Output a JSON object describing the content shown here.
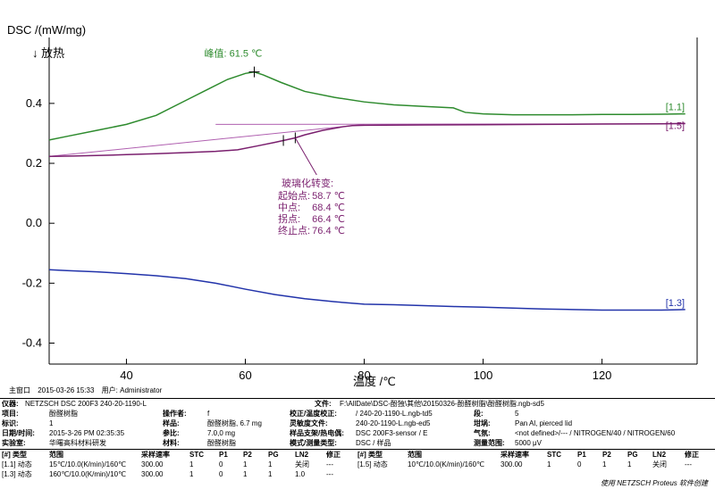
{
  "chart_data": {
    "type": "line",
    "ylabel": "DSC /(mW/mg)",
    "exo_label": "↓ 放热",
    "xlabel": "温度 /℃",
    "xlim": [
      27,
      136
    ],
    "ylim": [
      -0.47,
      0.62
    ],
    "xticks": [
      40,
      60,
      80,
      100,
      120
    ],
    "yticks": [
      -0.4,
      -0.2,
      0.0,
      0.2,
      0.4
    ],
    "tick_labels": {
      "x": [
        "40",
        "60",
        "80",
        "100",
        "120"
      ],
      "y": [
        "-0.4",
        "-0.2",
        "0.0",
        "0.2",
        "0.4"
      ]
    },
    "series": [
      {
        "name": "[1.1]",
        "color": "#2e8b2e",
        "x": [
          27,
          30,
          35,
          40,
          45,
          50,
          54,
          57,
          60,
          61.5,
          63,
          66,
          70,
          75,
          80,
          85,
          90,
          95,
          97,
          100,
          105,
          110,
          115,
          120,
          125,
          130,
          134
        ],
        "y": [
          0.278,
          0.29,
          0.31,
          0.33,
          0.36,
          0.41,
          0.45,
          0.48,
          0.5,
          0.505,
          0.495,
          0.47,
          0.44,
          0.42,
          0.405,
          0.395,
          0.39,
          0.385,
          0.37,
          0.365,
          0.362,
          0.362,
          0.362,
          0.363,
          0.363,
          0.364,
          0.365
        ]
      },
      {
        "name": "[1.5]",
        "color": "#7a1f6e",
        "x": [
          27,
          30,
          35,
          40,
          45,
          50,
          55,
          58.7,
          62,
          65,
          68.4,
          70,
          73,
          76.4,
          78,
          80,
          90,
          100,
          110,
          120,
          130,
          134
        ],
        "y": [
          0.223,
          0.224,
          0.226,
          0.229,
          0.232,
          0.236,
          0.24,
          0.245,
          0.258,
          0.27,
          0.285,
          0.295,
          0.31,
          0.322,
          0.326,
          0.327,
          0.328,
          0.329,
          0.33,
          0.331,
          0.332,
          0.333
        ]
      },
      {
        "name": "[1.3]",
        "color": "#2233aa",
        "x": [
          27,
          30,
          35,
          40,
          45,
          50,
          55,
          60,
          65,
          70,
          75,
          80,
          85,
          90,
          95,
          100,
          105,
          110,
          115,
          120,
          125,
          130,
          134
        ],
        "y": [
          -0.155,
          -0.158,
          -0.162,
          -0.168,
          -0.175,
          -0.185,
          -0.2,
          -0.22,
          -0.238,
          -0.252,
          -0.262,
          -0.27,
          -0.272,
          -0.275,
          -0.278,
          -0.28,
          -0.283,
          -0.286,
          -0.288,
          -0.29,
          -0.29,
          -0.29,
          -0.288
        ]
      }
    ],
    "tangent_lines": [
      {
        "color": "#b060b0",
        "x": [
          27,
          80
        ],
        "y": [
          0.223,
          0.33
        ]
      },
      {
        "color": "#b060b0",
        "x": [
          55,
          134
        ],
        "y": [
          0.33,
          0.332
        ]
      }
    ],
    "peak": {
      "label": "峰值:",
      "value": "61.5 ℃",
      "x": 61.5,
      "y": 0.505
    },
    "glass_transition": {
      "title": "玻璃化转变:",
      "marks": [
        68.4,
        66.4
      ],
      "rows": [
        {
          "label": "起始点:",
          "value": "58.7 ℃"
        },
        {
          "label": "中点:",
          "value": "68.4 ℃"
        },
        {
          "label": "拐点:",
          "value": "66.4 ℃"
        },
        {
          "label": "终止点:",
          "value": "76.4 ℃"
        }
      ]
    },
    "grid": false
  },
  "meta": {
    "window": "主窗口",
    "datetime": "2015-03-26 15:33",
    "user_label": "用户:",
    "user": "Administrator"
  },
  "info": {
    "instrument_label": "仪器:",
    "instrument": "NETZSCH DSC 200F3 240-20-1190-L",
    "file_label": "文件:",
    "file": "F:\\AllDate\\DSC-酚独\\其他\\20150326-酚醛树脂\\酚醛树脂.ngb-sd5",
    "project_label": "项目:",
    "project": "酚醛树脂",
    "operator_label": "操作者:",
    "operator": "f",
    "tempcal_label": "校正/温度校正:",
    "tempcal": "/ 240-20-1190-L.ngb-td5",
    "mode_label": "段:",
    "mode": "5",
    "id_label": "标识:",
    "id": "1",
    "sample_label": "样品:",
    "sample": "酚醛树脂, 6.7 mg",
    "sens_label": "灵敏度文件:",
    "sens": "240-20-1190-L.ngb-ed5",
    "crucible_label": "坩埚:",
    "crucible": "Pan Al, pierced lid",
    "date_label": "日期/时间:",
    "date": "2015-3-26 PM 02:35:35",
    "ref_label": "参比:",
    "ref": "7.0,0 mg",
    "holder_label": "样品支架/热电偶:",
    "holder": "DSC 200F3-sensor / E",
    "gas_label": "气氛:",
    "gas": "<not defined>/--- / NITROGEN/40 / NITROGEN/60",
    "lab_label": "实验室:",
    "lab": "华曙高科材料研发",
    "material_label": "材料:",
    "material": "酚醛树脂",
    "modetype_label": "模式/测量类型:",
    "modetype": "DSC / 样品",
    "range_label": "测量范围:",
    "range": "5000 μV"
  },
  "segments": {
    "headers": [
      "[#] 类型",
      "范围",
      "采样速率",
      "STC",
      "P1",
      "P2",
      "PG",
      "LN2",
      "修正"
    ],
    "rows_left": [
      [
        "[1.1] 动态",
        "15℃/10.0(K/min)/160℃",
        "300.00",
        "1",
        "0",
        "1",
        "1",
        "关闭",
        "---"
      ],
      [
        "[1.3] 动态",
        "160℃/10.0(K/min)/10℃",
        "300.00",
        "1",
        "0",
        "1",
        "1",
        "1.0",
        "---"
      ]
    ],
    "rows_right": [
      [
        "[1.5] 动态",
        "10℃/10.0(K/min)/160℃",
        "300.00",
        "1",
        "0",
        "1",
        "1",
        "关闭",
        "---"
      ]
    ]
  },
  "footer": "使用 NETZSCH Proteus 软件创建"
}
